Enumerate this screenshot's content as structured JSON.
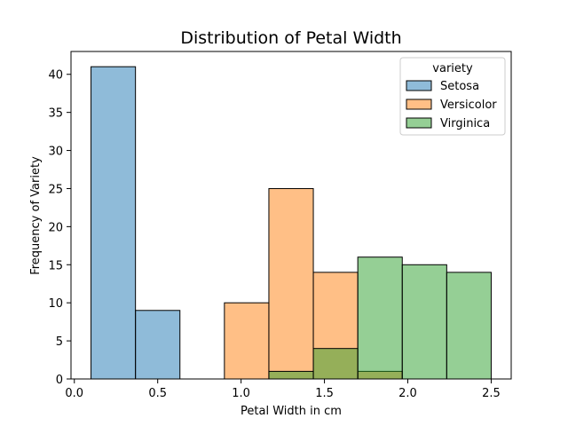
{
  "chart_data": {
    "type": "bar",
    "title": "Distribution of Petal Width",
    "xlabel": "Petal Width in cm",
    "ylabel": "Frequency of Variety",
    "xlim": [
      -0.02,
      2.62
    ],
    "ylim": [
      0,
      43
    ],
    "xticks": [
      0.0,
      0.5,
      1.0,
      1.5,
      2.0,
      2.5
    ],
    "xtick_labels": [
      "0.0",
      "0.5",
      "1.0",
      "1.5",
      "2.0",
      "2.5"
    ],
    "yticks": [
      0,
      5,
      10,
      15,
      20,
      25,
      30,
      35,
      40
    ],
    "ytick_labels": [
      "0",
      "5",
      "10",
      "15",
      "20",
      "25",
      "30",
      "35",
      "40"
    ],
    "bin_edges": [
      0.1,
      0.3667,
      0.6333,
      0.9,
      1.1667,
      1.4333,
      1.7,
      1.9667,
      2.2333,
      2.5
    ],
    "legend": {
      "title": "variety",
      "position": "top-right"
    },
    "grid": false,
    "series": [
      {
        "name": "Setosa",
        "color": "#1f77b4",
        "counts": [
          41,
          9,
          0,
          0,
          0,
          0,
          0,
          0,
          0
        ]
      },
      {
        "name": "Versicolor",
        "color": "#ff7f0e",
        "counts": [
          0,
          0,
          0,
          10,
          25,
          14,
          1,
          0,
          0
        ]
      },
      {
        "name": "Virginica",
        "color": "#2ca02c",
        "counts": [
          0,
          0,
          0,
          0,
          1,
          4,
          16,
          15,
          14
        ]
      }
    ]
  }
}
